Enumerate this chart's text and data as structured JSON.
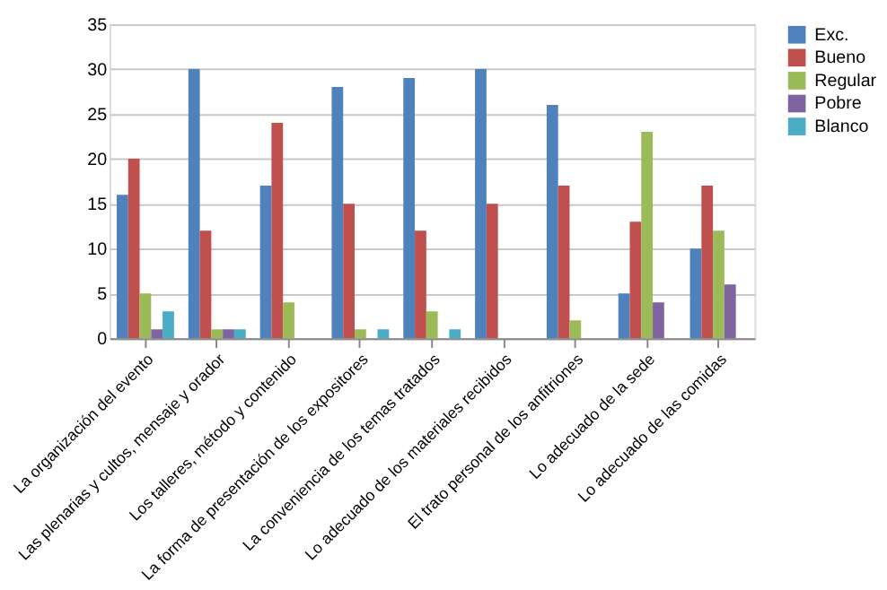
{
  "chart_data": {
    "type": "bar",
    "categories": [
      "La organización del evento",
      "Las plenarias y cultos, mensaje y orador",
      "Los talleres, método y contenido",
      "La forma de presentación de los expositores",
      "La conveniencia de los temas tratados",
      "Lo adecuado de los materiales recibidos",
      "El trato personal de los anfitriones",
      "Lo adecuado de la sede",
      "Lo adecuado de las comidas"
    ],
    "series": [
      {
        "name": "Exc.",
        "color": "#4f81bd",
        "values": [
          16,
          30,
          17,
          28,
          29,
          30,
          26,
          5,
          10
        ]
      },
      {
        "name": "Bueno",
        "color": "#c0504d",
        "values": [
          20,
          12,
          24,
          15,
          12,
          15,
          17,
          13,
          17
        ]
      },
      {
        "name": "Regular",
        "color": "#9bbb59",
        "values": [
          5,
          1,
          4,
          1,
          3,
          null,
          2,
          23,
          12
        ]
      },
      {
        "name": "Pobre",
        "color": "#8064a2",
        "values": [
          1,
          1,
          null,
          null,
          null,
          null,
          null,
          4,
          6
        ]
      },
      {
        "name": "Blanco",
        "color": "#4bacc6",
        "values": [
          3,
          1,
          null,
          1,
          1,
          null,
          null,
          null,
          null
        ]
      }
    ],
    "ylim": [
      0,
      35
    ],
    "yticks": [
      0,
      5,
      10,
      15,
      20,
      25,
      30,
      35
    ],
    "grid": "y",
    "legend": "right"
  }
}
